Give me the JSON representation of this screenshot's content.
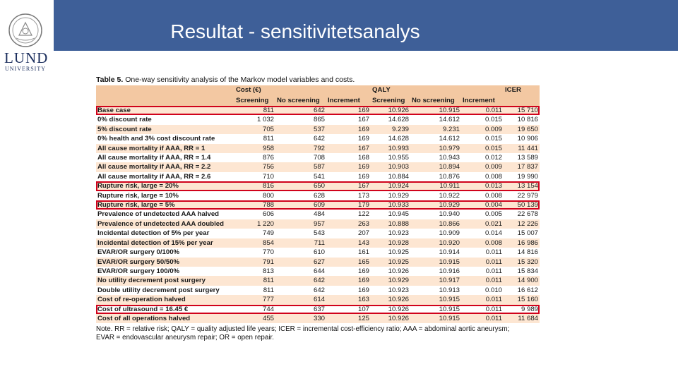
{
  "slide": {
    "title": "Resultat - sensitivitetsanalys",
    "logo_text": "LUND",
    "logo_subtext": "UNIVERSITY"
  },
  "colors": {
    "title_bar": "#3e5f98",
    "table_header": "#f3c8a2",
    "table_stripe": "#fde6d2",
    "highlight_box": "#d0021b"
  },
  "table": {
    "caption_bold": "Table 5.",
    "caption_rest": " One-way sensitivity analysis of the Markov model variables and costs.",
    "group_headers": [
      "",
      "Cost (€)",
      "",
      "",
      "QALY",
      "",
      "",
      "ICER"
    ],
    "sub_headers": [
      "",
      "Screening",
      "No screening",
      "Increment",
      "Screening",
      "No screening",
      "Increment",
      ""
    ],
    "rows": [
      {
        "label": "Base case",
        "values": [
          "811",
          "642",
          "169",
          "10.926",
          "10.915",
          "0.011",
          "15 710"
        ],
        "highlighted": true
      },
      {
        "label": "0% discount rate",
        "values": [
          "1 032",
          "865",
          "167",
          "14.628",
          "14.612",
          "0.015",
          "10 816"
        ],
        "highlighted": false
      },
      {
        "label": "5% discount rate",
        "values": [
          "705",
          "537",
          "169",
          "9.239",
          "9.231",
          "0.009",
          "19 650"
        ],
        "highlighted": false
      },
      {
        "label": "0% health and 3% cost discount rate",
        "values": [
          "811",
          "642",
          "169",
          "14.628",
          "14.612",
          "0.015",
          "10 906"
        ],
        "highlighted": false
      },
      {
        "label": "All cause mortality if AAA, RR = 1",
        "values": [
          "958",
          "792",
          "167",
          "10.993",
          "10.979",
          "0.015",
          "11 441"
        ],
        "highlighted": false
      },
      {
        "label": "All cause mortality if AAA, RR = 1.4",
        "values": [
          "876",
          "708",
          "168",
          "10.955",
          "10.943",
          "0.012",
          "13 589"
        ],
        "highlighted": false
      },
      {
        "label": "All cause mortality if AAA, RR = 2.2",
        "values": [
          "756",
          "587",
          "169",
          "10.903",
          "10.894",
          "0.009",
          "17 837"
        ],
        "highlighted": false
      },
      {
        "label": "All cause mortality if AAA, RR = 2.6",
        "values": [
          "710",
          "541",
          "169",
          "10.884",
          "10.876",
          "0.008",
          "19 990"
        ],
        "highlighted": false
      },
      {
        "label": "Rupture risk, large = 20%",
        "values": [
          "816",
          "650",
          "167",
          "10.924",
          "10.911",
          "0.013",
          "13 154"
        ],
        "highlighted": true
      },
      {
        "label": "Rupture risk, large = 10%",
        "values": [
          "800",
          "628",
          "173",
          "10.929",
          "10.922",
          "0.008",
          "22 979"
        ],
        "highlighted": false
      },
      {
        "label": "Rupture risk, large = 5%",
        "values": [
          "788",
          "609",
          "179",
          "10.933",
          "10.929",
          "0.004",
          "50 139"
        ],
        "highlighted": true
      },
      {
        "label": "Prevalence of undetected AAA halved",
        "values": [
          "606",
          "484",
          "122",
          "10.945",
          "10.940",
          "0.005",
          "22 678"
        ],
        "highlighted": false
      },
      {
        "label": "Prevalence of undetected AAA doubled",
        "values": [
          "1 220",
          "957",
          "263",
          "10.888",
          "10.866",
          "0.021",
          "12 226"
        ],
        "highlighted": false
      },
      {
        "label": "Incidental detection of 5% per year",
        "values": [
          "749",
          "543",
          "207",
          "10.923",
          "10.909",
          "0.014",
          "15 007"
        ],
        "highlighted": false
      },
      {
        "label": "Incidental detection of 15% per year",
        "values": [
          "854",
          "711",
          "143",
          "10.928",
          "10.920",
          "0.008",
          "16 986"
        ],
        "highlighted": false
      },
      {
        "label": "EVAR/OR surgery 0/100%",
        "values": [
          "770",
          "610",
          "161",
          "10.925",
          "10.914",
          "0.011",
          "14 816"
        ],
        "highlighted": false
      },
      {
        "label": "EVAR/OR surgery 50/50%",
        "values": [
          "791",
          "627",
          "165",
          "10.925",
          "10.915",
          "0.011",
          "15 320"
        ],
        "highlighted": false
      },
      {
        "label": "EVAR/OR surgery 100/0%",
        "values": [
          "813",
          "644",
          "169",
          "10.926",
          "10.916",
          "0.011",
          "15 834"
        ],
        "highlighted": false
      },
      {
        "label": "No utility decrement post surgery",
        "values": [
          "811",
          "642",
          "169",
          "10.929",
          "10.917",
          "0.011",
          "14 900"
        ],
        "highlighted": false
      },
      {
        "label": "Double utility decrement post surgery",
        "values": [
          "811",
          "642",
          "169",
          "10.923",
          "10.913",
          "0.010",
          "16 612"
        ],
        "highlighted": false
      },
      {
        "label": "Cost of re-operation halved",
        "values": [
          "777",
          "614",
          "163",
          "10.926",
          "10.915",
          "0.011",
          "15 160"
        ],
        "highlighted": false
      },
      {
        "label": "Cost of ultrasound = 16.45 €",
        "values": [
          "744",
          "637",
          "107",
          "10.926",
          "10.915",
          "0.011",
          "9 989"
        ],
        "highlighted": true
      },
      {
        "label": "Cost of all operations halved",
        "values": [
          "455",
          "330",
          "125",
          "10.926",
          "10.915",
          "0.011",
          "11 684"
        ],
        "highlighted": false
      }
    ],
    "note_line1": "Note. RR = relative risk; QALY = quality adjusted life years; ICER = incremental cost-efficiency ratio; AAA = abdominal aortic aneurysm;",
    "note_line2": "EVAR = endovascular aneurysm repair; OR = open repair."
  }
}
